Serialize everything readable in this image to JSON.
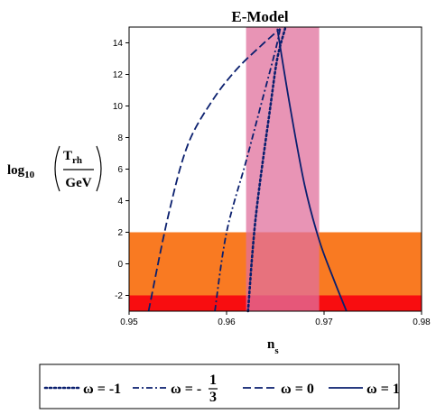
{
  "chart_data": {
    "type": "line",
    "title": "E-Model",
    "xlabel": {
      "main": "n",
      "sub": "s"
    },
    "ylabel": {
      "prefix": "log",
      "prefix_sub": "10",
      "numerator": "T",
      "numerator_sub": "rh",
      "denominator": "GeV"
    },
    "xlim": [
      0.95,
      0.98
    ],
    "ylim": [
      -3,
      15
    ],
    "xticks": [
      "0.95",
      "0.96",
      "0.97",
      "0.98"
    ],
    "yticks": [
      "-2",
      "0",
      "2",
      "4",
      "6",
      "8",
      "10",
      "12",
      "14"
    ],
    "grid": false,
    "shaded_regions": [
      {
        "orientation": "horizontal",
        "from": -3,
        "to": 2,
        "color": "#f97a22"
      },
      {
        "orientation": "horizontal",
        "from": -3,
        "to": -2,
        "color": "#f80d10"
      },
      {
        "orientation": "vertical",
        "from": 0.962,
        "to": 0.9695,
        "color": "#e0709c",
        "opacity": 0.75
      }
    ],
    "series": [
      {
        "name": "ω = -1",
        "dash": "dotted",
        "color": "#0a1f6e",
        "x": [
          0.9622,
          0.963,
          0.9645,
          0.9652,
          0.966
        ],
        "y": [
          -3,
          3,
          10,
          13,
          14.9
        ]
      },
      {
        "name": "ω = -1/3",
        "dash": "dashdot",
        "color": "#0a1f6e",
        "x": [
          0.9588,
          0.96,
          0.962,
          0.9635,
          0.965,
          0.9655
        ],
        "y": [
          -3,
          2,
          6.5,
          10,
          13.5,
          14.9
        ]
      },
      {
        "name": "ω = 0",
        "dash": "dashed",
        "color": "#0a1f6e",
        "x": [
          0.952,
          0.954,
          0.956,
          0.9585,
          0.961,
          0.9635,
          0.9655
        ],
        "y": [
          -3,
          3,
          7.5,
          10.3,
          12.3,
          13.8,
          14.9
        ]
      },
      {
        "name": "ω = 1",
        "dash": "solid",
        "color": "#0a1f6e",
        "x": [
          0.9652,
          0.9665,
          0.968,
          0.9695,
          0.971,
          0.9723
        ],
        "y": [
          14.9,
          10,
          5,
          1.5,
          -1,
          -3
        ]
      }
    ],
    "legend": {
      "position": "bottom",
      "items": [
        {
          "symbol": "ω",
          "equals": "= -1"
        },
        {
          "symbol": "ω",
          "equals": "= -",
          "frac_num": "1",
          "frac_den": "3"
        },
        {
          "symbol": "ω",
          "equals": "= 0"
        },
        {
          "symbol": "ω",
          "equals": "= 1"
        }
      ]
    }
  }
}
